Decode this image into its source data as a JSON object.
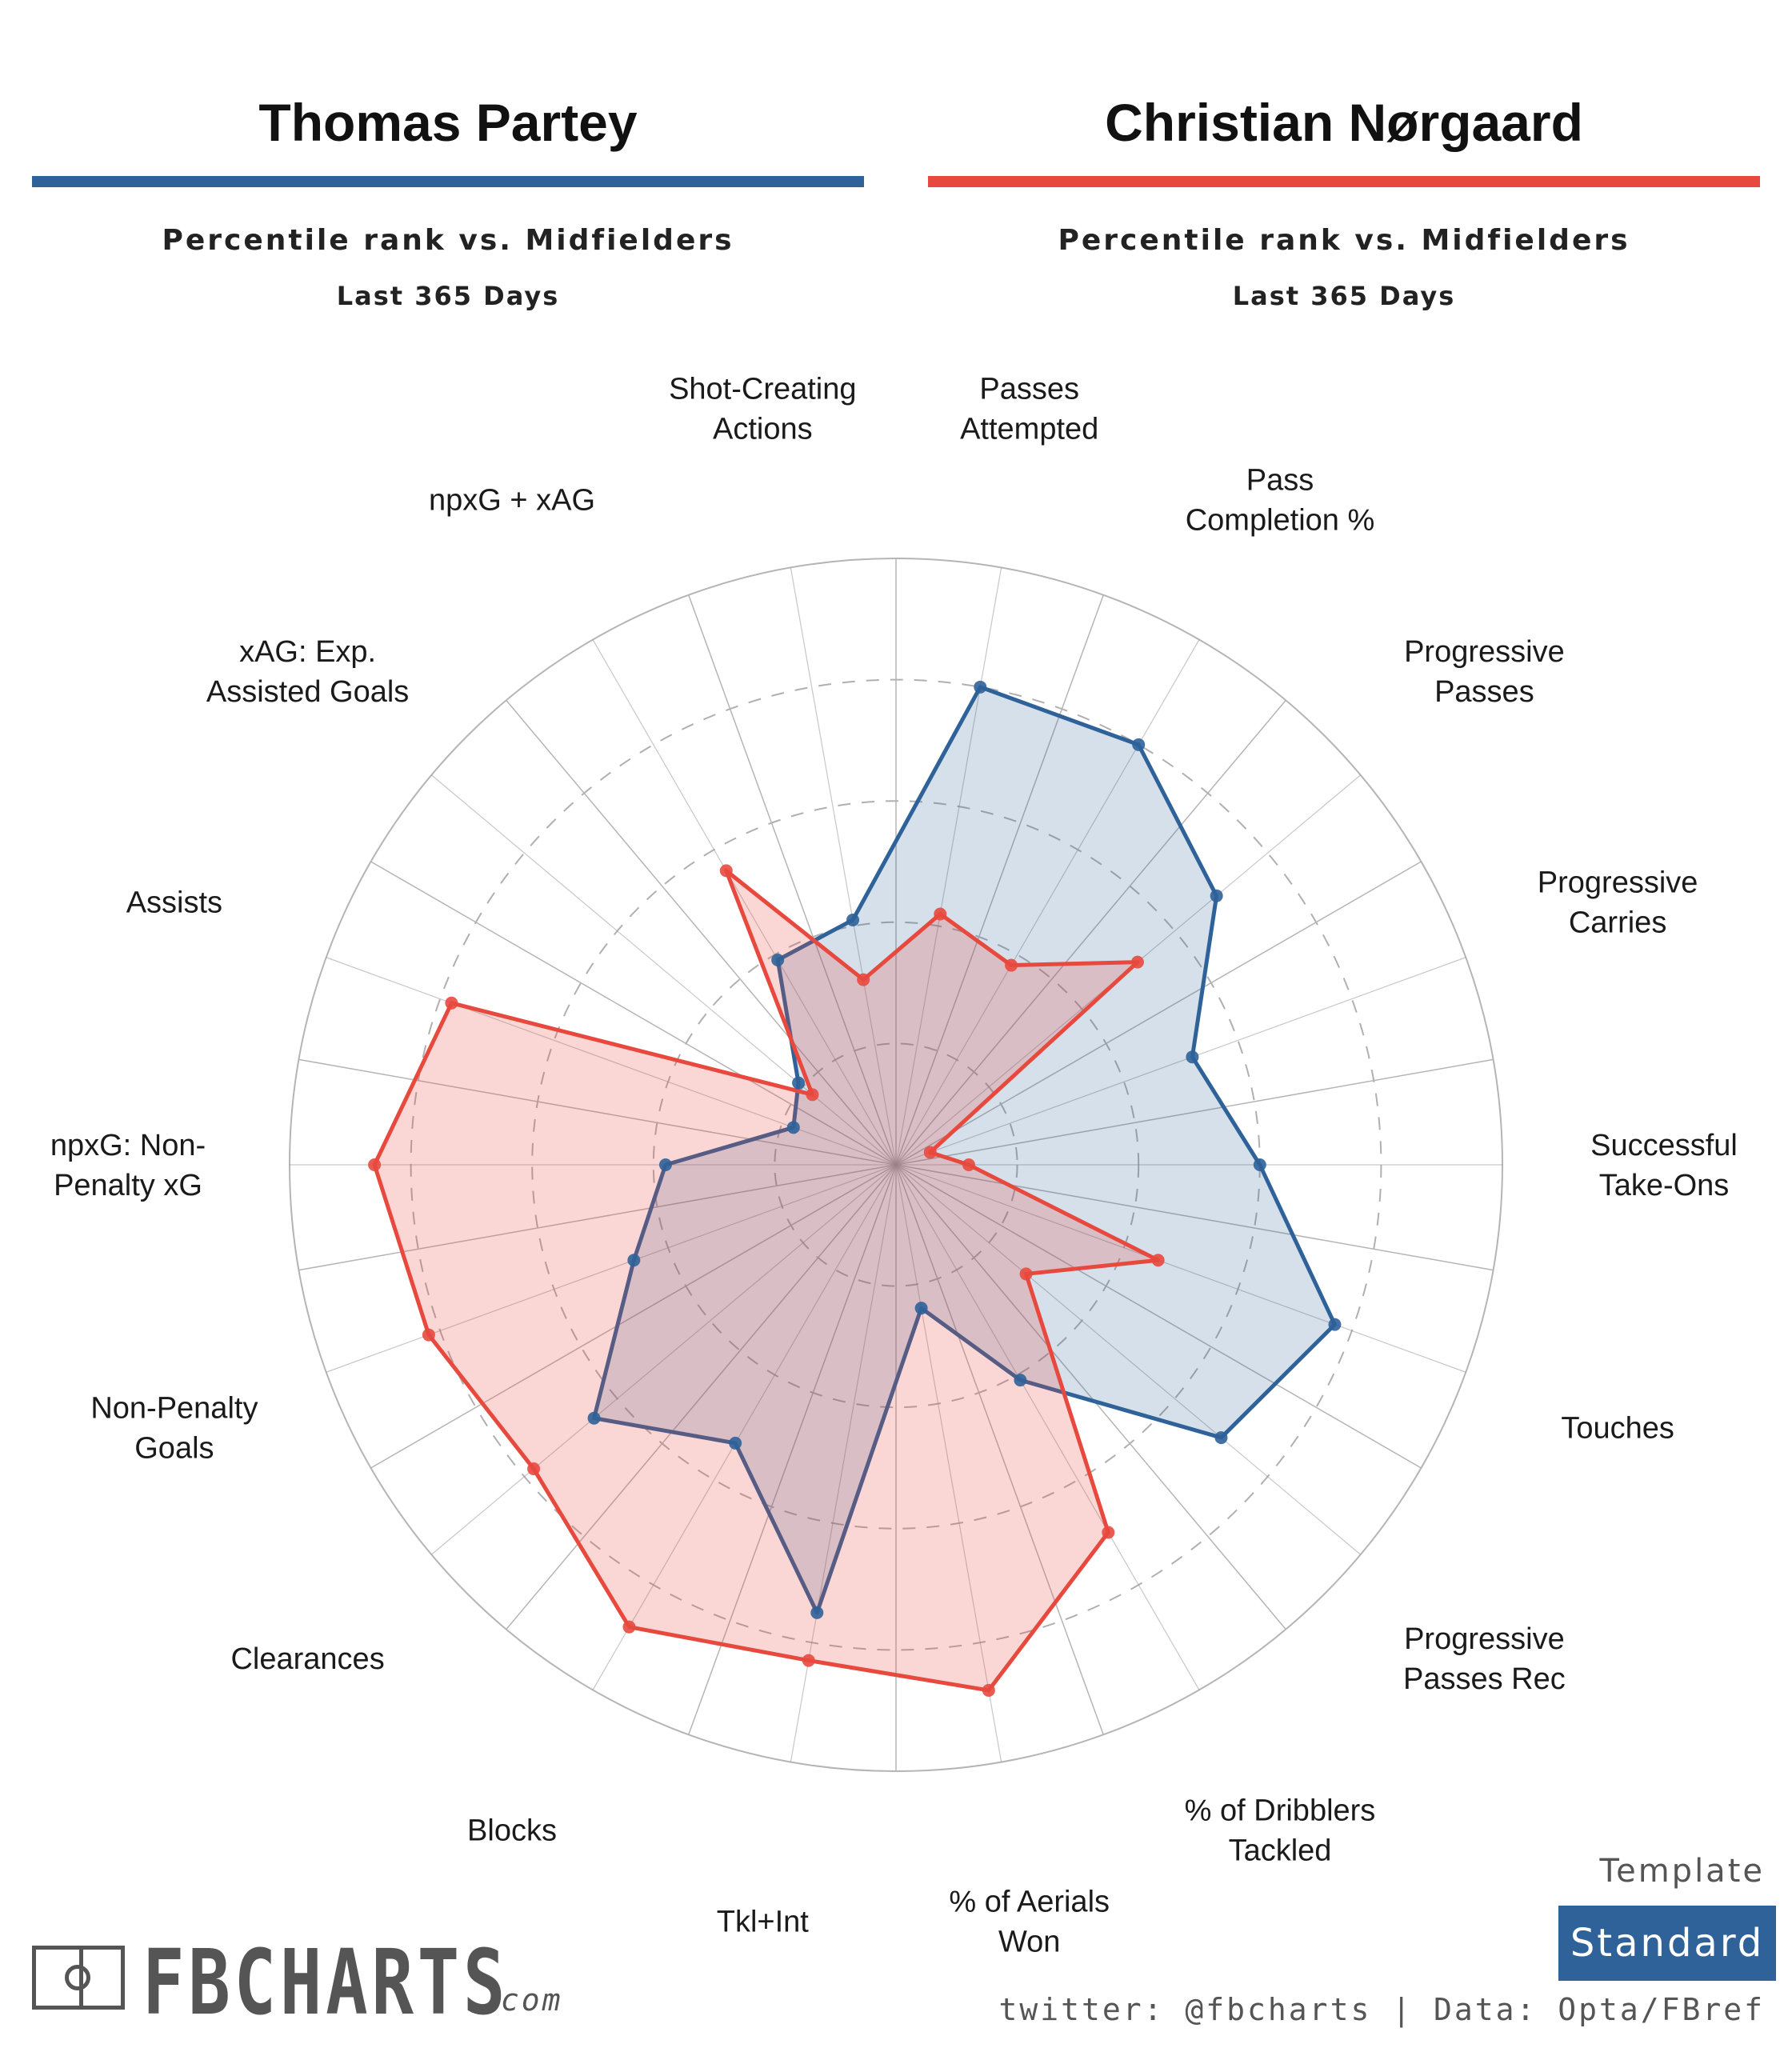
{
  "players": [
    {
      "name": "Thomas Partey",
      "color": "#2f6299"
    },
    {
      "name": "Christian Nørgaard",
      "color": "#e8493e"
    }
  ],
  "subtitle": "Percentile rank vs. Midfielders",
  "period": "Last 365 Days",
  "chart_data": {
    "type": "radar",
    "scale": [
      0,
      100
    ],
    "grid": "dashed rings at 20, 40, 60, 80",
    "categories": [
      "Passes\nAttempted",
      "Pass\nCompletion %",
      "Progressive\nPasses",
      "Progressive\nCarries",
      "Successful\nTake-Ons",
      "Touches",
      "Progressive\nPasses Rec",
      "% of Dribblers\nTackled",
      "% of Aerials\nWon",
      "Tkl+Int",
      "Blocks",
      "Clearances",
      "Non-Penalty\nGoals",
      "npxG: Non-\nPenalty xG",
      "Assists",
      "xAG: Exp.\nAssisted Goals",
      "npxG + xAG",
      "Shot-Creating\nActions"
    ],
    "series": [
      {
        "name": "Thomas Partey",
        "color": "#2f6299",
        "values": [
          80,
          80,
          69,
          52,
          60,
          77,
          70,
          41,
          24,
          75,
          53,
          65,
          46,
          38,
          18,
          21,
          39,
          41
        ]
      },
      {
        "name": "Christian Nørgaard",
        "color": "#e8493e",
        "values": [
          42,
          38,
          52,
          6,
          12,
          46,
          28,
          70,
          88,
          83,
          88,
          78,
          82,
          86,
          78,
          18,
          56,
          31
        ]
      }
    ]
  },
  "logo": {
    "text": "FBCHARTS",
    "suffix": ".com"
  },
  "template": {
    "label": "Template",
    "value": "Standard"
  },
  "credits": "twitter: @fbcharts | Data: Opta/FBref"
}
